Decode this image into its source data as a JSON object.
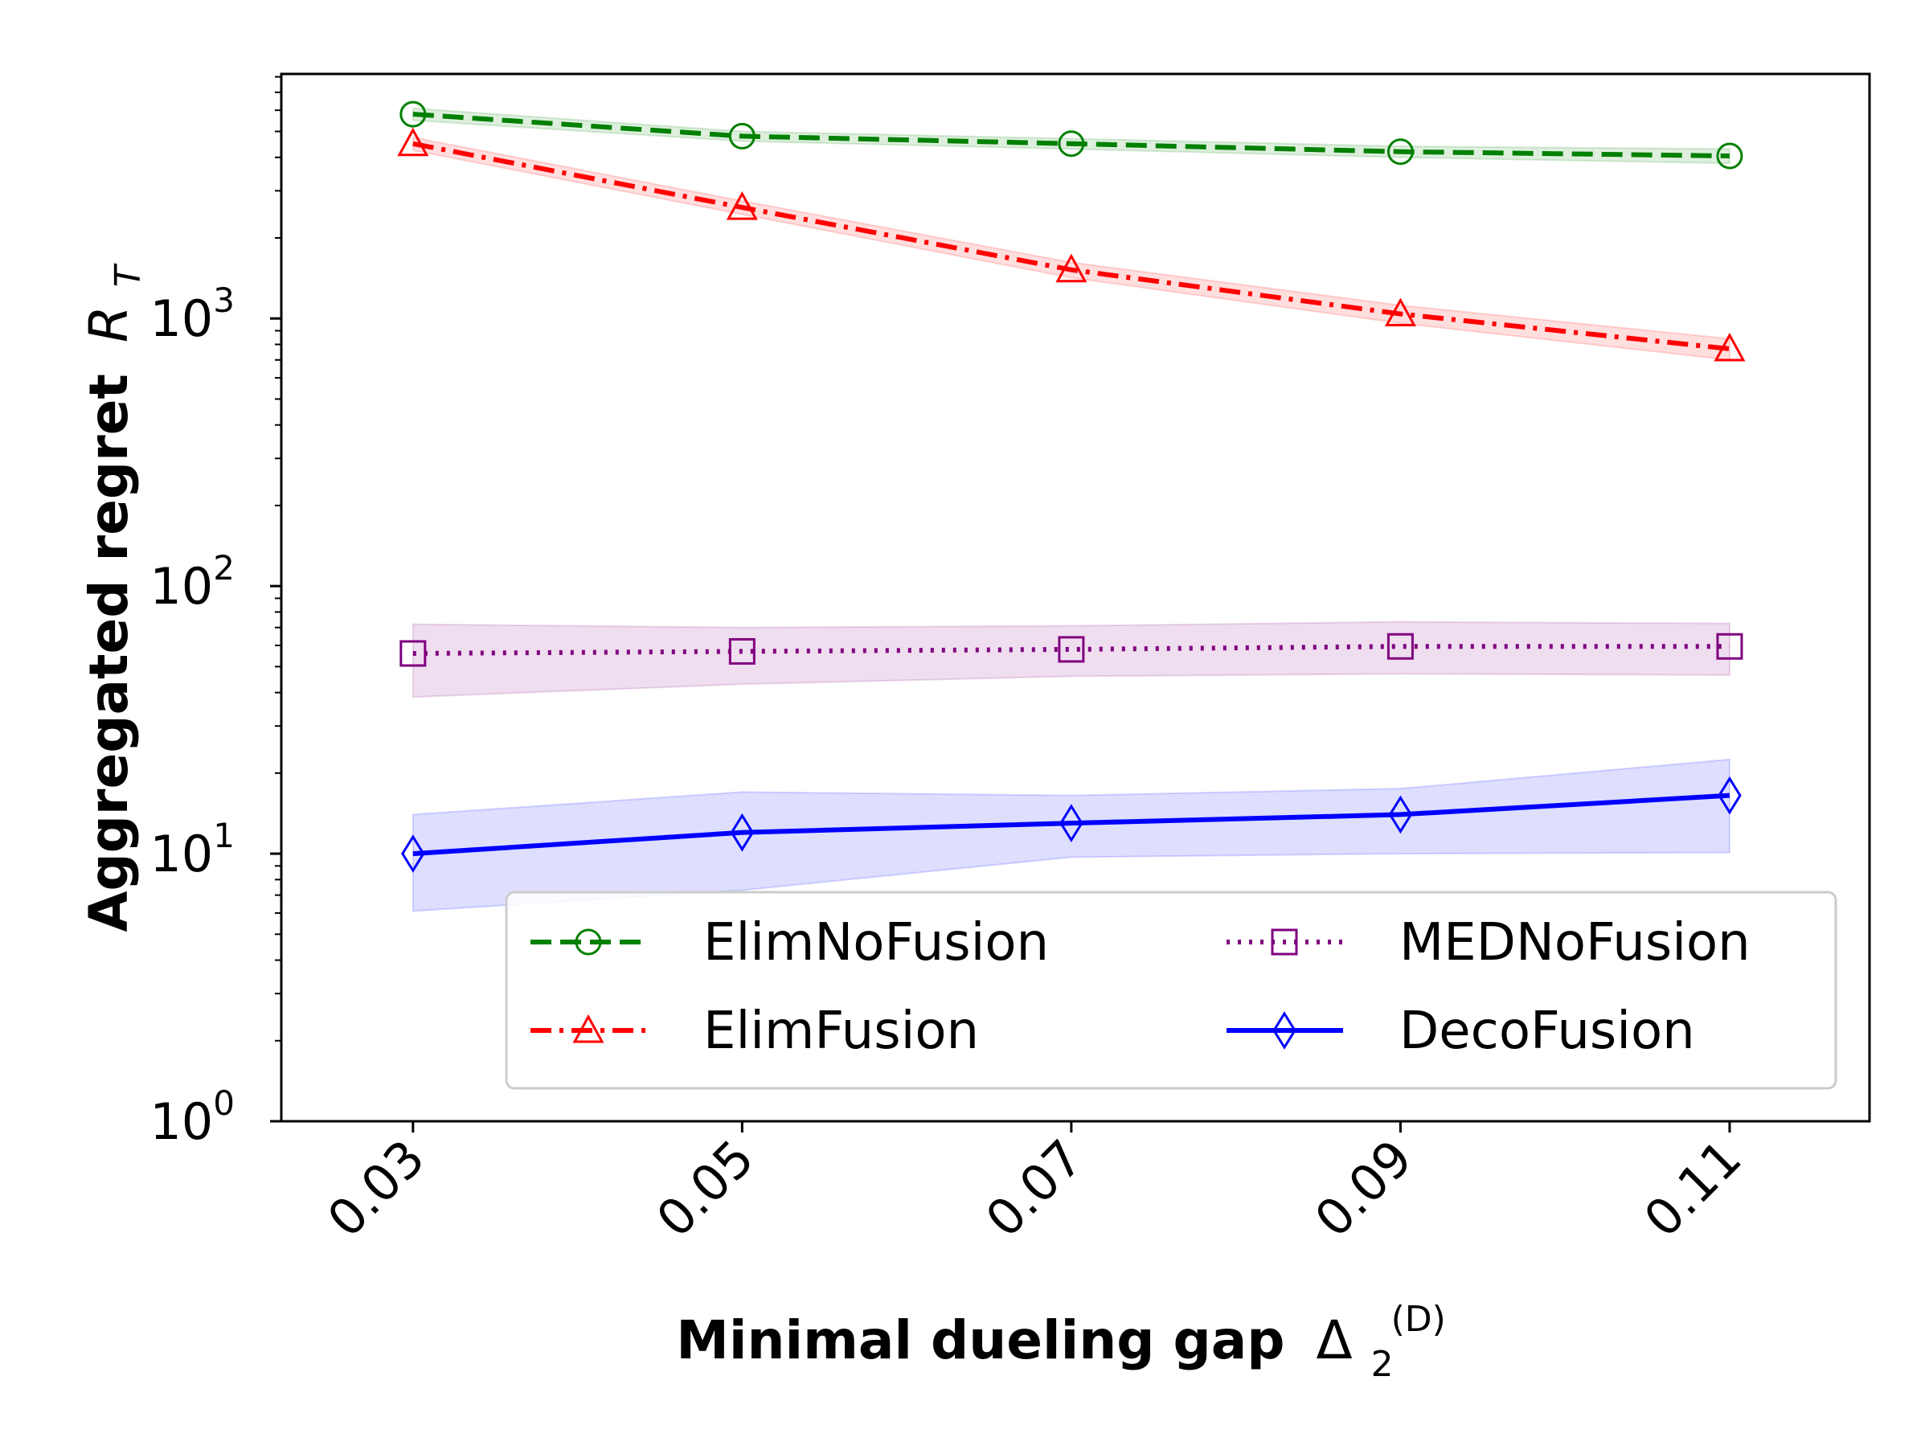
{
  "chart_data": {
    "type": "line",
    "title": "",
    "xlabel": "Minimal dueling gap",
    "xlabel_symbol": "Δ",
    "xlabel_subscript": "2",
    "xlabel_superscript": "(D)",
    "ylabel": "Aggregated regret",
    "ylabel_symbol": "R",
    "ylabel_subscript": "T",
    "x": [
      "0.03",
      "0.05",
      "0.07",
      "0.09",
      "0.11"
    ],
    "x_values": [
      0.03,
      0.05,
      0.07,
      0.09,
      0.11
    ],
    "xlim": [
      0.022,
      0.1185
    ],
    "y_scale": "log",
    "ylim": [
      1,
      8200
    ],
    "y_ticks": [
      {
        "value": 1,
        "base": "10",
        "exp": "0"
      },
      {
        "value": 10,
        "base": "10",
        "exp": "1"
      },
      {
        "value": 100,
        "base": "10",
        "exp": "2"
      },
      {
        "value": 1000,
        "base": "10",
        "exp": "3"
      }
    ],
    "grid": false,
    "legend_position": "lower-right",
    "legend_columns": 2,
    "series": [
      {
        "name": "ElimNoFusion",
        "color": "#008000",
        "linestyle": "dashed",
        "marker": "circle",
        "values": [
          5800,
          4800,
          4500,
          4200,
          4050
        ],
        "band_lower": [
          5500,
          4600,
          4300,
          4000,
          3800
        ],
        "band_upper": [
          6100,
          5000,
          4700,
          4400,
          4300
        ]
      },
      {
        "name": "ElimFusion",
        "color": "#ff0000",
        "linestyle": "dashdot",
        "marker": "triangle",
        "values": [
          4500,
          2600,
          1520,
          1040,
          770
        ],
        "band_lower": [
          4250,
          2450,
          1420,
          960,
          700
        ],
        "band_upper": [
          4750,
          2750,
          1620,
          1120,
          840
        ]
      },
      {
        "name": "MEDNoFusion",
        "color": "#800080",
        "linestyle": "dotted",
        "marker": "square",
        "values": [
          56,
          57,
          58,
          59.5,
          59.5
        ],
        "band_lower": [
          38.5,
          43,
          46,
          47,
          46.5
        ],
        "band_upper": [
          72,
          70,
          71,
          73.5,
          72.5
        ]
      },
      {
        "name": "DecoFusion",
        "color": "#0000ff",
        "linestyle": "solid",
        "marker": "diamond",
        "values": [
          10,
          12,
          13,
          14,
          16.5
        ],
        "band_lower": [
          6.1,
          7.3,
          9.7,
          10,
          10.1
        ],
        "band_upper": [
          14,
          17,
          16.5,
          17.5,
          22.5
        ]
      }
    ]
  }
}
